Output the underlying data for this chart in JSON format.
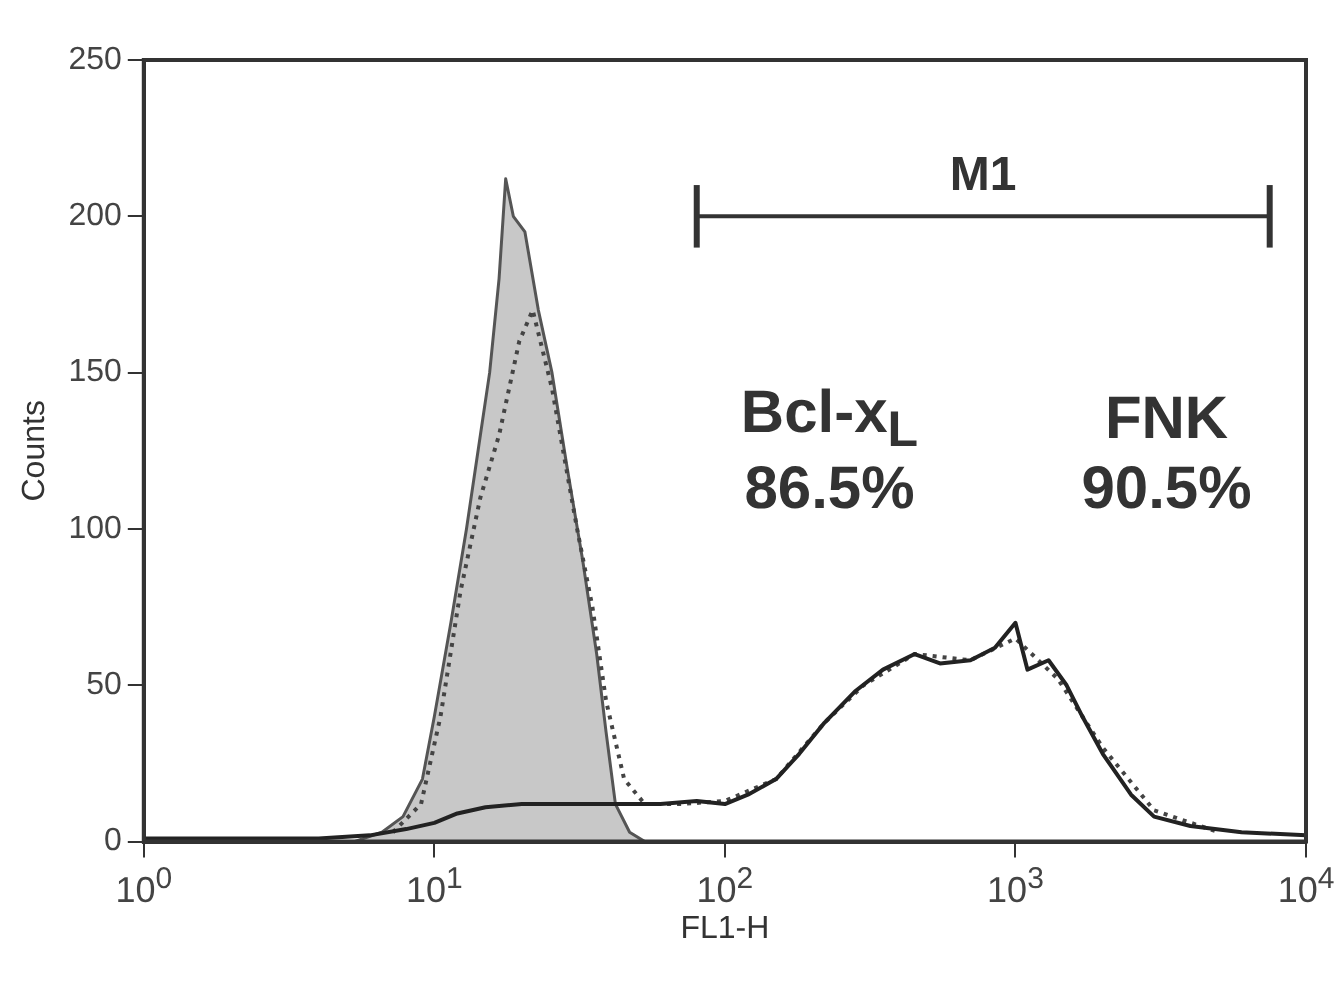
{
  "chart_data": {
    "type": "line",
    "xlabel": "FL1-H",
    "ylabel": "Counts",
    "log": "x",
    "xlim": [
      1,
      10000
    ],
    "xticks": [
      {
        "value": 1,
        "label": "10$^{0}$"
      },
      {
        "value": 10,
        "label": "10$^{1}$"
      },
      {
        "value": 100,
        "label": "10$^{2}$"
      },
      {
        "value": 1000,
        "label": "10$^{3}$"
      },
      {
        "value": 10000,
        "label": "10$^{4}$"
      }
    ],
    "ylim": [
      0,
      250
    ],
    "yticks": [
      0,
      50,
      100,
      150,
      200,
      250
    ],
    "marker": "none",
    "series": [
      {
        "type": "area",
        "color": "#c8c8c8",
        "x": [
          5.3,
          6.6,
          7.8,
          9.1,
          10,
          11.4,
          12.9,
          14.4,
          15.5,
          16.7,
          17.6,
          18.7,
          20.5,
          22.8,
          25.4,
          28.6,
          32.4,
          36.2,
          39,
          42,
          47,
          53
        ],
        "values": [
          0,
          3,
          8,
          20,
          40,
          70,
          100,
          130,
          150,
          180,
          212,
          200,
          195,
          170,
          150,
          120,
          90,
          60,
          35,
          12,
          3,
          0
        ]
      },
      {
        "color": "#222222",
        "line_style": "solid",
        "x": [
          1,
          4,
          6,
          8,
          10,
          12,
          15,
          20,
          30,
          45,
          60,
          80,
          100,
          120,
          150,
          180,
          220,
          280,
          350,
          450,
          550,
          700,
          850,
          1000,
          1100,
          1300,
          1500,
          1700,
          2000,
          2500,
          3000,
          4000,
          6000,
          10000
        ],
        "values": [
          1,
          1,
          2,
          4,
          6,
          9,
          11,
          12,
          12,
          12,
          12,
          13,
          12,
          15,
          20,
          28,
          38,
          48,
          55,
          60,
          57,
          58,
          62,
          70,
          55,
          58,
          50,
          40,
          28,
          15,
          8,
          5,
          3,
          2
        ]
      },
      {
        "color": "#444444",
        "line_style": "dotted",
        "x": [
          7.2,
          9,
          10.5,
          12.3,
          14.4,
          16.7,
          19.6,
          21.8,
          25.4,
          31,
          35,
          39,
          45,
          53,
          70,
          100,
          150,
          220,
          300,
          450,
          700,
          1000,
          1400,
          2000,
          3000,
          5000
        ],
        "values": [
          3,
          12,
          40,
          80,
          110,
          130,
          160,
          170,
          145,
          100,
          75,
          45,
          20,
          12,
          12,
          13,
          20,
          38,
          50,
          60,
          58,
          65,
          52,
          30,
          10,
          3
        ]
      },
      {
        "name": "M1",
        "color": "#333333",
        "line_style": "solid",
        "x": [
          80,
          7500
        ],
        "values": [
          200,
          200
        ],
        "errors": [
          10,
          10
        ]
      }
    ],
    "annotations": [
      "Bcl-x$_{L}$",
      "86.5%",
      "FNK",
      "90.5%"
    ]
  }
}
